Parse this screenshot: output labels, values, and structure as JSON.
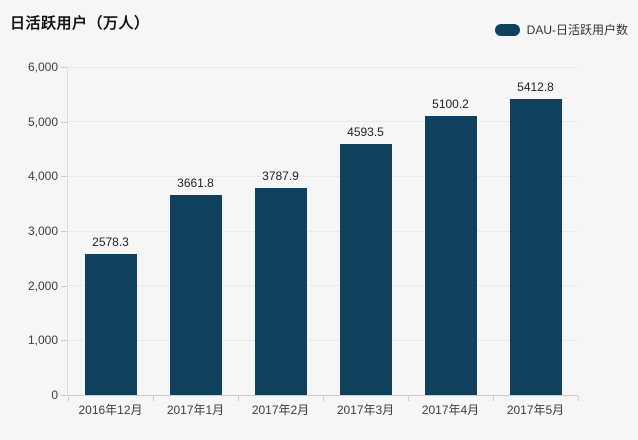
{
  "header": {
    "title": "日活跃用户（万人）",
    "legend": {
      "label": "DAU-日活跃用户数",
      "swatch": "legend-swatch"
    }
  },
  "colors": {
    "bar": "#0f405d",
    "background": "#f6f6f6",
    "gridline": "#eaeaea",
    "x_axis_line": "#cccccc",
    "y_axis_line": "#dddddd",
    "tick": "#cccccc",
    "axis_text": "#3d3d3d",
    "value_text": "#1f1f1f",
    "title_text": "#111111"
  },
  "chart_data": {
    "type": "bar",
    "title": "日活跃用户（万人）",
    "categories": [
      "2016年12月",
      "2017年1月",
      "2017年2月",
      "2017年3月",
      "2017年4月",
      "2017年5月"
    ],
    "series": [
      {
        "name": "DAU-日活跃用户数",
        "values": [
          2578.3,
          3661.8,
          3787.9,
          4593.5,
          5100.2,
          5412.8
        ]
      }
    ],
    "value_labels": [
      "2578.3",
      "3661.8",
      "3787.9",
      "4593.5",
      "5100.2",
      "5412.8"
    ],
    "xlabel": "",
    "ylabel": "",
    "ylim": [
      0,
      6000
    ],
    "ytick_interval": 1000,
    "ytick_labels": [
      "0",
      "1,000",
      "2,000",
      "3,000",
      "4,000",
      "5,000",
      "6,000"
    ],
    "grid": true,
    "legend_position": "top-right"
  }
}
